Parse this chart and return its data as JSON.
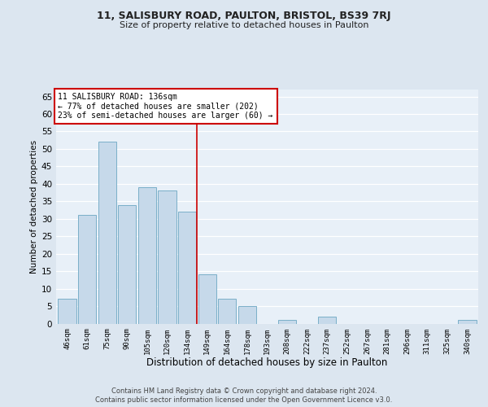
{
  "title1": "11, SALISBURY ROAD, PAULTON, BRISTOL, BS39 7RJ",
  "title2": "Size of property relative to detached houses in Paulton",
  "xlabel": "Distribution of detached houses by size in Paulton",
  "ylabel": "Number of detached properties",
  "bin_labels": [
    "46sqm",
    "61sqm",
    "75sqm",
    "90sqm",
    "105sqm",
    "120sqm",
    "134sqm",
    "149sqm",
    "164sqm",
    "178sqm",
    "193sqm",
    "208sqm",
    "222sqm",
    "237sqm",
    "252sqm",
    "267sqm",
    "281sqm",
    "296sqm",
    "311sqm",
    "325sqm",
    "340sqm"
  ],
  "bar_heights": [
    7,
    31,
    52,
    34,
    39,
    38,
    32,
    14,
    7,
    5,
    0,
    1,
    0,
    2,
    0,
    0,
    0,
    0,
    0,
    0,
    1
  ],
  "bar_color": "#c6d9ea",
  "bar_edge_color": "#7aafc8",
  "highlight_line_color": "#cc0000",
  "annotation_title": "11 SALISBURY ROAD: 136sqm",
  "annotation_line1": "← 77% of detached houses are smaller (202)",
  "annotation_line2": "23% of semi-detached houses are larger (60) →",
  "annotation_box_color": "#cc0000",
  "ylim": [
    0,
    67
  ],
  "yticks": [
    0,
    5,
    10,
    15,
    20,
    25,
    30,
    35,
    40,
    45,
    50,
    55,
    60,
    65
  ],
  "footer1": "Contains HM Land Registry data © Crown copyright and database right 2024.",
  "footer2": "Contains public sector information licensed under the Open Government Licence v3.0.",
  "bg_color": "#dce6f0",
  "plot_bg_color": "#e8f0f8"
}
